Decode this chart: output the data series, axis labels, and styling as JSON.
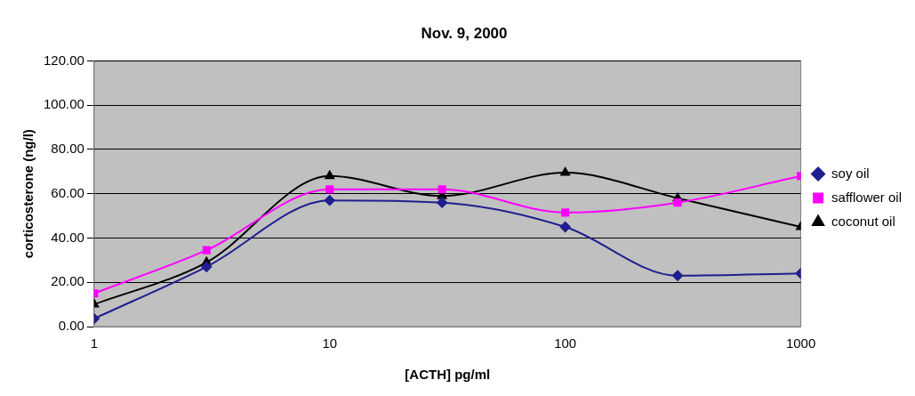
{
  "chart_data": {
    "type": "line",
    "title": "Nov. 9, 2000",
    "xlabel": "[ACTH] pg/ml",
    "ylabel": "corticosterone (ng/l)",
    "x": [
      1,
      3,
      10,
      30,
      100,
      300,
      1000
    ],
    "series": [
      {
        "name": "soy oil",
        "color": "#1f1f8f",
        "marker": "diamond",
        "values": [
          3.6,
          27,
          57,
          56,
          45,
          23,
          24
        ]
      },
      {
        "name": "safflower oil",
        "color": "#ff00ff",
        "marker": "square",
        "values": [
          15,
          34.5,
          62,
          62,
          51.5,
          56,
          68
        ]
      },
      {
        "name": "coconut oil",
        "color": "#000000",
        "marker": "triangle",
        "values": [
          10,
          29,
          68,
          59,
          69.5,
          58,
          45
        ]
      }
    ],
    "log": "x",
    "xlim": [
      1,
      1000
    ],
    "xticks": [
      1,
      10,
      100,
      1000
    ],
    "ylim": [
      0,
      120
    ],
    "yticks": [
      {
        "value": 0,
        "label": "0.00"
      },
      {
        "value": 20,
        "label": "20.00"
      },
      {
        "value": 40,
        "label": "40.00"
      },
      {
        "value": 60,
        "label": "60.00"
      },
      {
        "value": 80,
        "label": "80.00"
      },
      {
        "value": 100,
        "label": "100.00"
      },
      {
        "value": 120,
        "label": "120.00"
      }
    ],
    "grid": "y",
    "legend": "right",
    "line_style": "solid"
  }
}
